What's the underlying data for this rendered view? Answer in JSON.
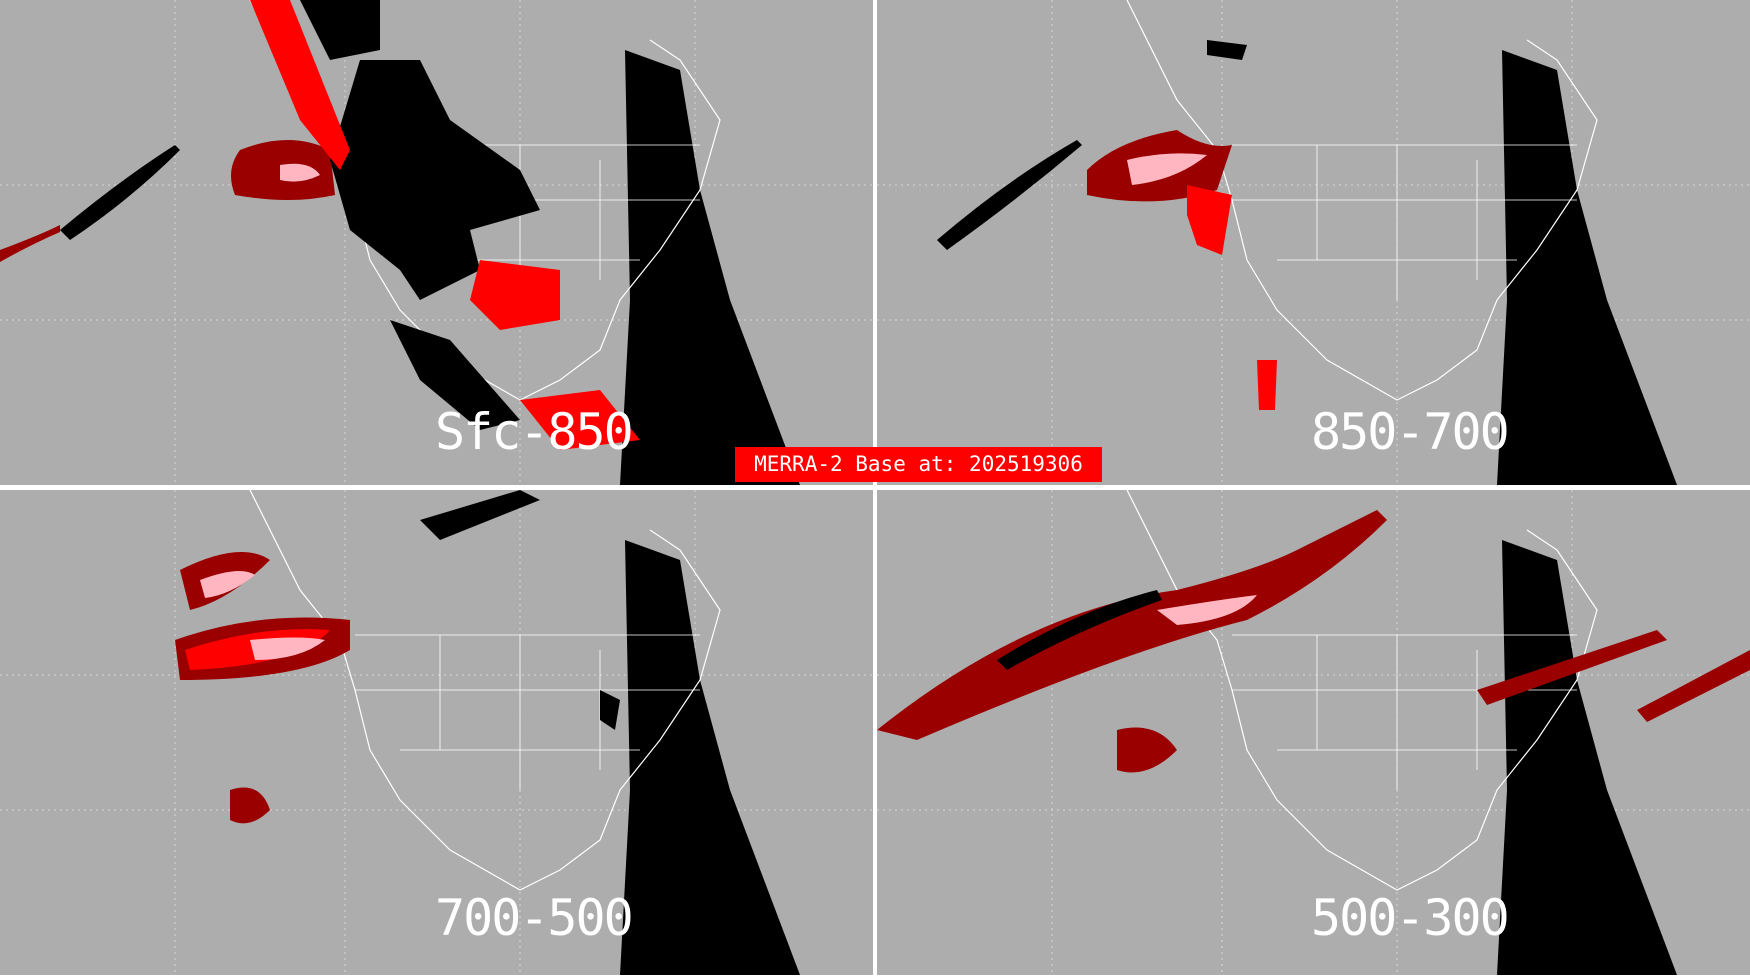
{
  "banner": "MERRA-2 Base at: 202519306",
  "panels": [
    {
      "label": "Sfc-850"
    },
    {
      "label": "850-700"
    },
    {
      "label": "700-500"
    },
    {
      "label": "500-300"
    }
  ],
  "colors": {
    "background": "#adadad",
    "mask": "#000000",
    "high": "#ff0000",
    "medium": "#9a0000",
    "low": "#ffb6c1",
    "lines": "#ffffff"
  }
}
